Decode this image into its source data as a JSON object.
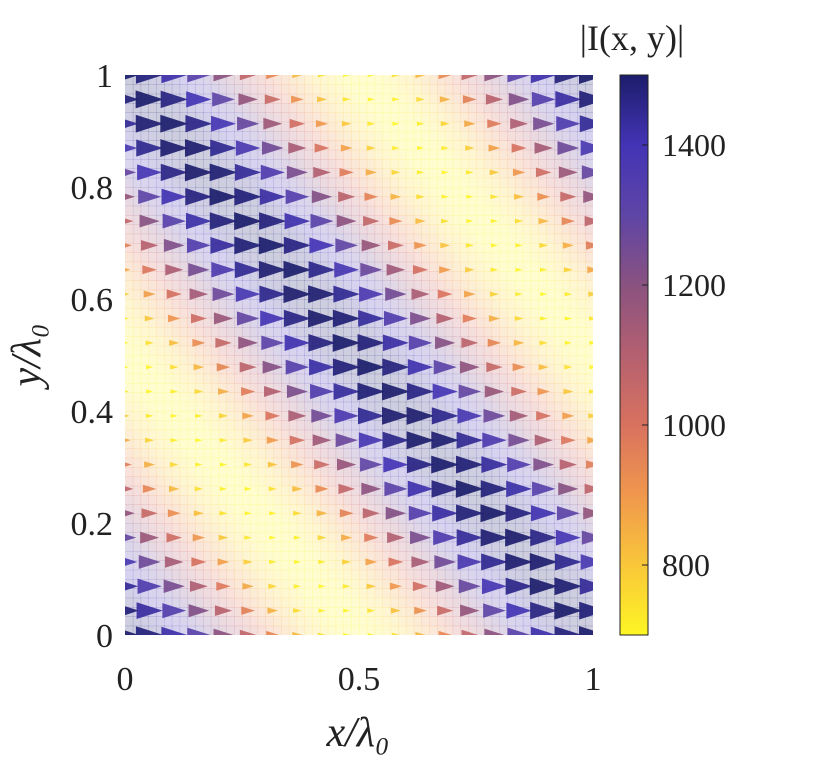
{
  "chart_data": {
    "type": "heatmap",
    "subtype": "vector-field-over-intensity-map",
    "title": "",
    "xlabel": "x/λ₀",
    "ylabel": "y/λ₀",
    "xlim": [
      0,
      1
    ],
    "ylim": [
      0,
      1
    ],
    "x_ticks": [
      0,
      0.5,
      1
    ],
    "x_tick_labels": [
      "0",
      "0.5",
      "1"
    ],
    "y_ticks": [
      0,
      0.2,
      0.4,
      0.6,
      0.8,
      1
    ],
    "y_tick_labels": [
      "0",
      "0.2",
      "0.4",
      "0.6",
      "0.8",
      "1"
    ],
    "colorbar": {
      "title": "|I(x, y)|",
      "range": [
        700,
        1500
      ],
      "ticks": [
        800,
        1000,
        1200,
        1400
      ],
      "tick_labels": [
        "800",
        "1000",
        "1200",
        "1400"
      ],
      "colormap": [
        "#fdf524",
        "#f9c73a",
        "#f0974d",
        "#d8725f",
        "#b46070",
        "#8a5280",
        "#5e45a6",
        "#4334b5",
        "#1c1d6b"
      ]
    },
    "field": {
      "description_model": "intensity = mean + amp * cos(2π(x + y)) ; arrows point +x, length ∝ intensity",
      "intensity_mean": 1100,
      "intensity_amplitude": 400,
      "arrow_direction": "+x",
      "grid_nx": 20,
      "grid_ny": 24
    },
    "grid": false,
    "legend": "colorbar-right"
  }
}
